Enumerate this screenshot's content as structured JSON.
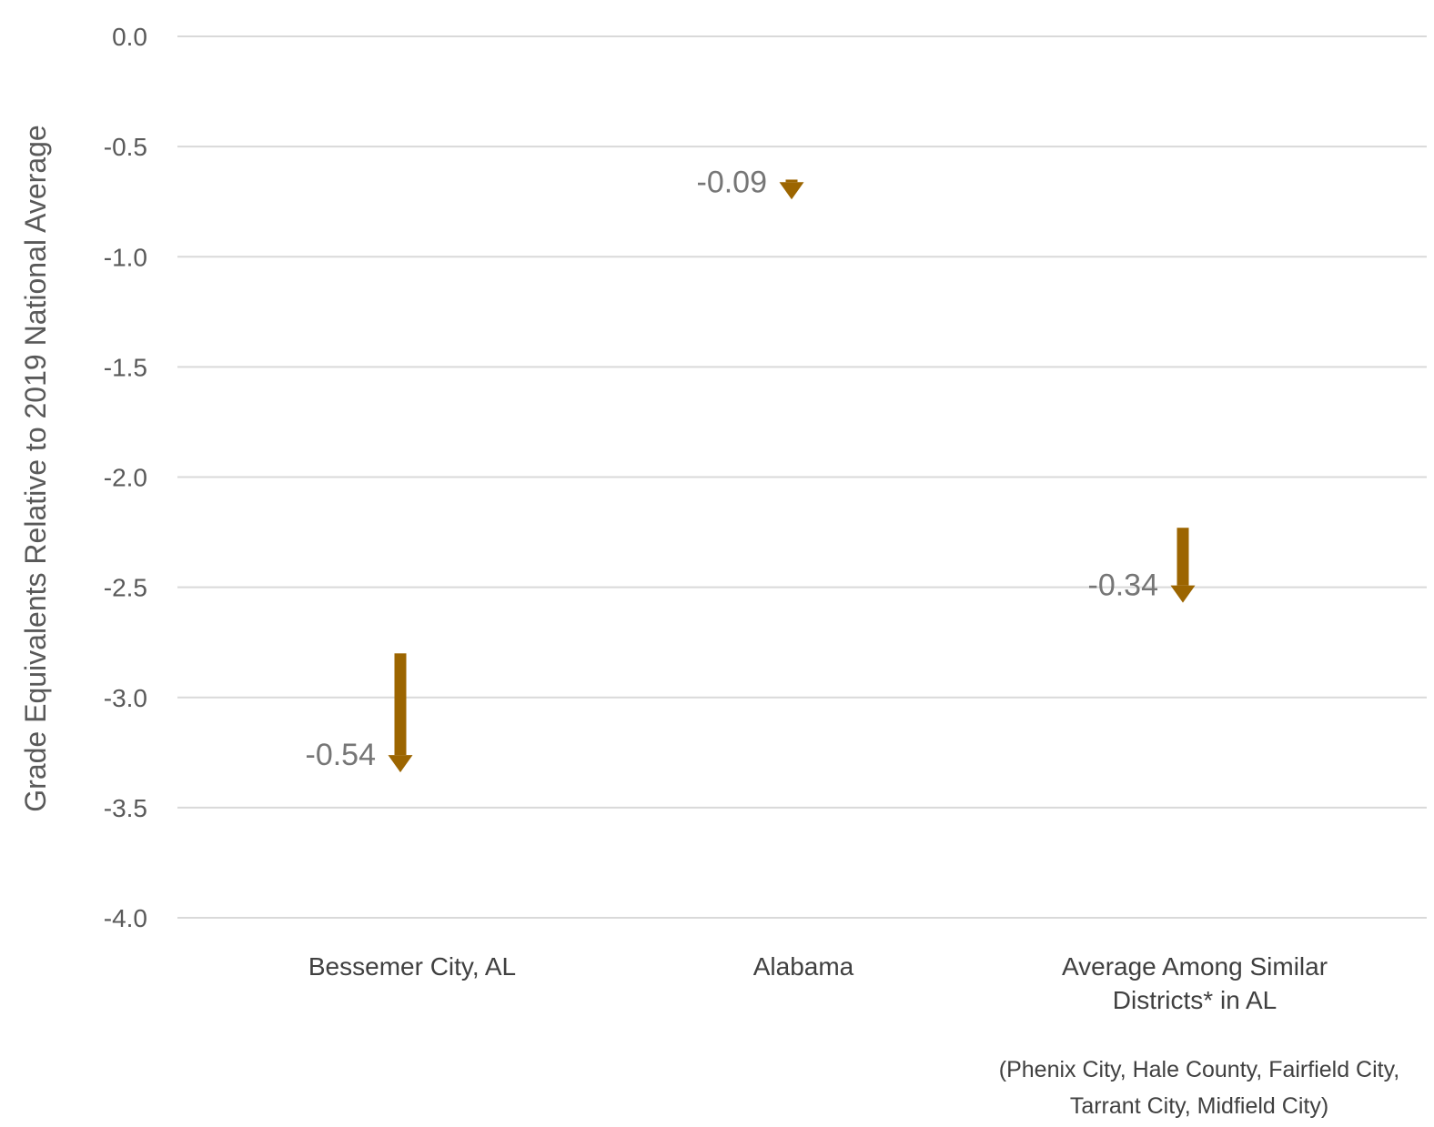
{
  "chart_data": {
    "type": "arrow",
    "title": "",
    "ylabel": "Grade Equivalents Relative to 2019 National Average",
    "xlabel": "",
    "ylim": [
      -4.0,
      0.0
    ],
    "yticks": [
      0.0,
      -0.5,
      -1.0,
      -1.5,
      -2.0,
      -2.5,
      -3.0,
      -3.5,
      -4.0
    ],
    "ytick_labels": [
      "0.0",
      "-0.5",
      "-1.0",
      "-1.5",
      "-2.0",
      "-2.5",
      "-3.0",
      "-3.5",
      "-4.0"
    ],
    "grid": true,
    "arrow_color": "#9c6500",
    "categories": [
      {
        "label_lines": [
          "Bessemer City, AL"
        ],
        "start": -2.8,
        "end": -3.34,
        "change": -0.54,
        "change_label": "-0.54"
      },
      {
        "label_lines": [
          "Alabama"
        ],
        "start": -0.65,
        "end": -0.74,
        "change": -0.09,
        "change_label": "-0.09"
      },
      {
        "label_lines": [
          "Average Among Similar",
          "Districts* in AL"
        ],
        "start": -2.23,
        "end": -2.57,
        "change": -0.34,
        "change_label": "-0.34"
      }
    ],
    "footnote_lines": [
      "(Phenix City, Hale County, Fairfield City,",
      "Tarrant City, Midfield City)"
    ]
  }
}
